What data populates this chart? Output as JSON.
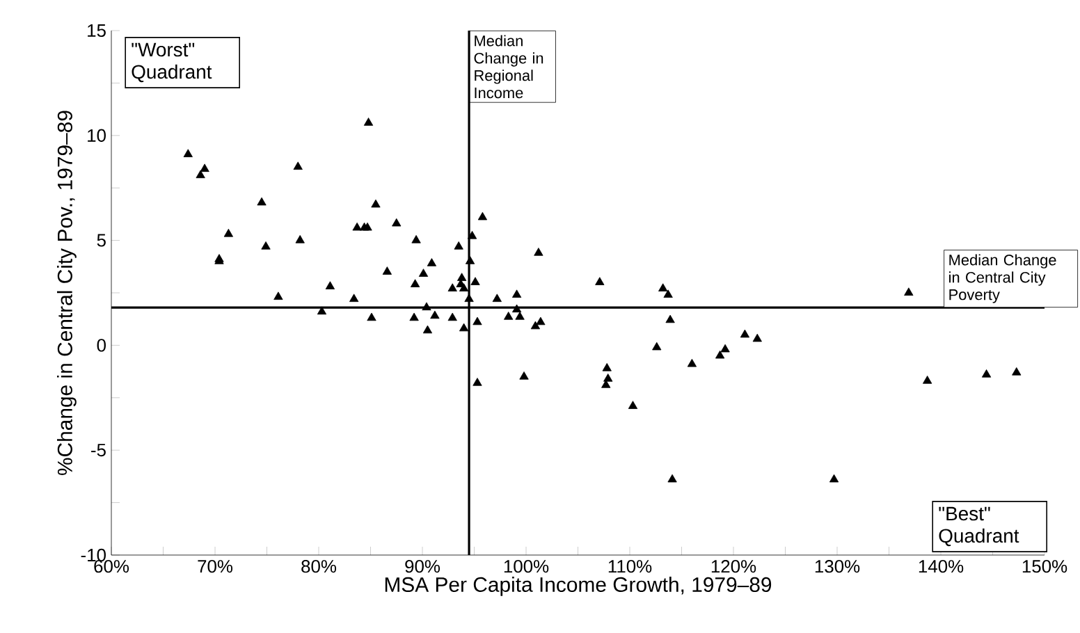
{
  "chart_data": {
    "type": "scatter",
    "xlabel": "MSA Per Capita Income Growth, 1979–89",
    "ylabel": "%Change in Central City Pov., 1979–89",
    "xlim": [
      60,
      150
    ],
    "xticks": [
      {
        "value": 60,
        "label": "60%"
      },
      {
        "value": 65,
        "label": null
      },
      {
        "value": 70,
        "label": "70%"
      },
      {
        "value": 75,
        "label": null
      },
      {
        "value": 80,
        "label": "80%"
      },
      {
        "value": 85,
        "label": null
      },
      {
        "value": 90,
        "label": "90%"
      },
      {
        "value": 95,
        "label": null
      },
      {
        "value": 100,
        "label": "100%"
      },
      {
        "value": 105,
        "label": null
      },
      {
        "value": 110,
        "label": "110%"
      },
      {
        "value": 115,
        "label": null
      },
      {
        "value": 120,
        "label": "120%"
      },
      {
        "value": 125,
        "label": null
      },
      {
        "value": 130,
        "label": "130%"
      },
      {
        "value": 135,
        "label": null
      },
      {
        "value": 140,
        "label": "140%"
      },
      {
        "value": 145,
        "label": null
      },
      {
        "value": 150,
        "label": "150%"
      }
    ],
    "ylim": [
      -10,
      15
    ],
    "yticks": [
      -10,
      {
        "value": -7.5,
        "label": null
      },
      -5,
      {
        "value": -2.5,
        "label": null
      },
      0,
      {
        "value": 2.5,
        "label": null
      },
      5,
      {
        "value": 7.5,
        "label": null
      },
      10,
      {
        "value": 12.5,
        "label": null
      },
      15
    ],
    "marker": "triangle",
    "series": [
      {
        "color": "#000000",
        "x": [
          84.8,
          67.4,
          69.0,
          68.6,
          78.0,
          74.5,
          85.5,
          71.3,
          87.5,
          83.7,
          84.4,
          84.7,
          89.4,
          74.9,
          78.2,
          70.4,
          70.4,
          93.5,
          90.9,
          86.6,
          90.1,
          89.3,
          93.8,
          93.7,
          94.0,
          92.9,
          81.1,
          76.1,
          83.4,
          80.3,
          85.1,
          90.4,
          89.2,
          91.2,
          92.9,
          90.5,
          94.0,
          94.8,
          95.8,
          94.6,
          95.1,
          94.5,
          97.2,
          99.1,
          101.2,
          99.1,
          99.4,
          98.3,
          101.4,
          100.9,
          95.3,
          107.1,
          113.2,
          113.7,
          113.9,
          112.6,
          121.1,
          122.3,
          119.2,
          118.7,
          95.3,
          99.8,
          107.8,
          107.9,
          107.7,
          110.3,
          116.0,
          114.1,
          136.9,
          138.7,
          144.4,
          147.3,
          129.7
        ],
        "values": [
          10.6,
          9.1,
          8.4,
          8.1,
          8.5,
          6.8,
          6.7,
          5.3,
          5.8,
          5.6,
          5.6,
          5.6,
          5.0,
          4.7,
          5.0,
          4.1,
          4.0,
          4.7,
          3.9,
          3.5,
          3.4,
          2.9,
          3.2,
          2.9,
          2.7,
          2.7,
          2.8,
          2.3,
          2.2,
          1.6,
          1.3,
          1.8,
          1.3,
          1.4,
          1.3,
          0.7,
          0.8,
          5.2,
          6.1,
          4.0,
          3.0,
          2.2,
          2.2,
          2.4,
          4.4,
          1.7,
          1.35,
          1.35,
          1.1,
          0.9,
          1.1,
          3.0,
          2.7,
          2.4,
          1.2,
          -0.1,
          0.5,
          0.3,
          -0.2,
          -0.5,
          -1.8,
          -1.5,
          -1.1,
          -1.6,
          -1.9,
          -2.9,
          -0.9,
          -6.4,
          2.5,
          -1.7,
          -1.4,
          -1.3,
          -6.4
        ]
      }
    ],
    "ref_lines": [
      {
        "axis": "x",
        "value": 94.5,
        "label": "Median Change in Regional Income"
      },
      {
        "axis": "y",
        "value": 1.8,
        "label": "Median Change in Central City Poverty"
      }
    ],
    "annotations": [
      "\"Worst\" Quadrant",
      "\"Best\" Quadrant"
    ]
  }
}
